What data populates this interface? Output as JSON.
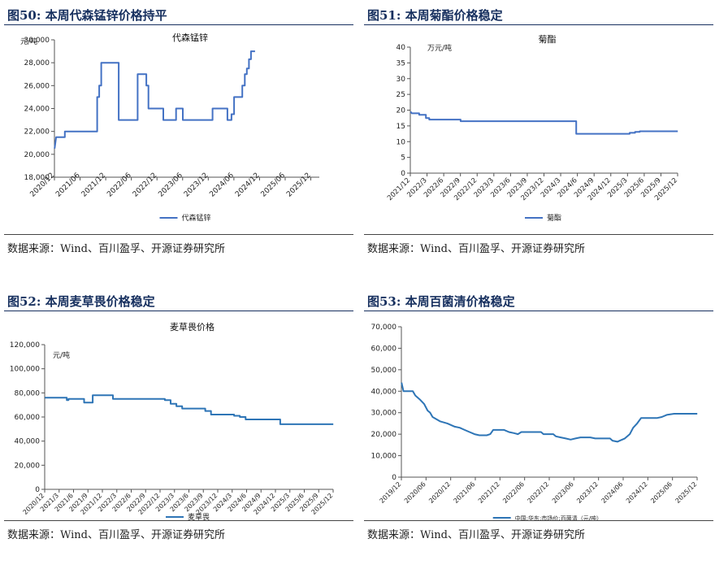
{
  "figures": [
    {
      "fig_title": "图50:  本周代森锰锌价格持平",
      "source": "数据来源：Wind、百川盈孚、开源证券研究所",
      "chart_data": {
        "type": "line",
        "title": "代森锰锌",
        "ylabel": "元/吨",
        "ylim": [
          18000,
          30000
        ],
        "yticks": [
          18000,
          20000,
          22000,
          24000,
          26000,
          28000,
          30000
        ],
        "ytick_labels": [
          "18,000",
          "20,000",
          "22,000",
          "24,000",
          "26,000",
          "28,000",
          "30,000"
        ],
        "xlim": [
          2020.917,
          2026.083
        ],
        "xticks": [
          2020.917,
          2021.417,
          2021.917,
          2022.417,
          2022.917,
          2023.417,
          2023.917,
          2024.417,
          2024.917,
          2025.417,
          2025.917
        ],
        "xtick_labels": [
          "2020/12",
          "2021/06",
          "2021/12",
          "2022/06",
          "2022/12",
          "2023/06",
          "2023/12",
          "2024/06",
          "2024/12",
          "2025/06",
          "2025/12"
        ],
        "legend_position": "bottom",
        "series": [
          {
            "name": "代森锰锌",
            "color": "#4472c4",
            "points": [
              [
                2020.92,
                20500
              ],
              [
                2020.95,
                21500
              ],
              [
                2021.12,
                21500
              ],
              [
                2021.12,
                22000
              ],
              [
                2021.75,
                22000
              ],
              [
                2021.75,
                25000
              ],
              [
                2021.79,
                25000
              ],
              [
                2021.79,
                26000
              ],
              [
                2021.83,
                26000
              ],
              [
                2021.83,
                28000
              ],
              [
                2022.17,
                28000
              ],
              [
                2022.17,
                23000
              ],
              [
                2022.54,
                23000
              ],
              [
                2022.54,
                27000
              ],
              [
                2022.71,
                27000
              ],
              [
                2022.71,
                26000
              ],
              [
                2022.75,
                26000
              ],
              [
                2022.75,
                24000
              ],
              [
                2023.04,
                24000
              ],
              [
                2023.04,
                23000
              ],
              [
                2023.29,
                23000
              ],
              [
                2023.29,
                24000
              ],
              [
                2023.42,
                24000
              ],
              [
                2023.42,
                23000
              ],
              [
                2024.0,
                23000
              ],
              [
                2024.0,
                24000
              ],
              [
                2024.29,
                24000
              ],
              [
                2024.29,
                23000
              ],
              [
                2024.37,
                23000
              ],
              [
                2024.37,
                23500
              ],
              [
                2024.42,
                23500
              ],
              [
                2024.42,
                25000
              ],
              [
                2024.58,
                25000
              ],
              [
                2024.58,
                26000
              ],
              [
                2024.63,
                26000
              ],
              [
                2024.63,
                27000
              ],
              [
                2024.67,
                27000
              ],
              [
                2024.67,
                27500
              ],
              [
                2024.71,
                27500
              ],
              [
                2024.71,
                28300
              ],
              [
                2024.75,
                28300
              ],
              [
                2024.75,
                29000
              ],
              [
                2024.83,
                29000
              ]
            ]
          }
        ]
      }
    },
    {
      "fig_title": "图51:  本周菊酯价格稳定",
      "source": "数据来源：Wind、百川盈孚、开源证券研究所",
      "chart_data": {
        "type": "line",
        "title": "菊酯",
        "ylabel": "万元/吨",
        "ylim": [
          0,
          40
        ],
        "yticks": [
          0,
          5,
          10,
          15,
          20,
          25,
          30,
          35,
          40
        ],
        "ytick_labels": [
          "0",
          "5",
          "10",
          "15",
          "20",
          "25",
          "30",
          "35",
          "40"
        ],
        "xlim": [
          2021.917,
          2025.917
        ],
        "xticks": [
          2021.917,
          2022.167,
          2022.417,
          2022.667,
          2022.917,
          2023.167,
          2023.417,
          2023.667,
          2023.917,
          2024.167,
          2024.417,
          2024.667,
          2024.917,
          2025.167,
          2025.417,
          2025.667,
          2025.917
        ],
        "xtick_labels": [
          "2021/12",
          "2022/3",
          "2022/6",
          "2022/9",
          "2022/12",
          "2023/3",
          "2023/6",
          "2023/9",
          "2023/12",
          "2024/3",
          "2024/6",
          "2024/9",
          "2024/12",
          "2025/3",
          "2025/6",
          "2025/9",
          "2025/12"
        ],
        "legend_position": "bottom",
        "series": [
          {
            "name": "菊酯",
            "color": "#4472c4",
            "points": [
              [
                2021.92,
                19.5
              ],
              [
                2021.94,
                19
              ],
              [
                2022.05,
                19
              ],
              [
                2022.05,
                18.5
              ],
              [
                2022.15,
                18.5
              ],
              [
                2022.15,
                17.5
              ],
              [
                2022.2,
                17.5
              ],
              [
                2022.2,
                17
              ],
              [
                2022.67,
                17
              ],
              [
                2022.67,
                16.5
              ],
              [
                2024.4,
                16.5
              ],
              [
                2024.4,
                12.5
              ],
              [
                2025.2,
                12.5
              ],
              [
                2025.2,
                12.8
              ],
              [
                2025.28,
                12.8
              ],
              [
                2025.28,
                13.1
              ],
              [
                2025.35,
                13.1
              ],
              [
                2025.35,
                13.3
              ],
              [
                2025.92,
                13.3
              ]
            ]
          }
        ]
      }
    },
    {
      "fig_title": "图52:  本周麦草畏价格稳定",
      "source": "数据来源：Wind、百川盈孚、开源证券研究所",
      "chart_data": {
        "type": "line",
        "title": "麦草畏价格",
        "ylabel": "元/吨",
        "ylim": [
          0,
          120000
        ],
        "yticks": [
          0,
          20000,
          40000,
          60000,
          80000,
          100000,
          120000
        ],
        "ytick_labels": [
          "0",
          "20,000",
          "40,000",
          "60,000",
          "80,000",
          "100,000",
          "120,000"
        ],
        "xlim": [
          2020.917,
          2025.917
        ],
        "xticks": [
          2020.917,
          2021.167,
          2021.417,
          2021.667,
          2021.917,
          2022.167,
          2022.417,
          2022.667,
          2022.917,
          2023.167,
          2023.417,
          2023.667,
          2023.917,
          2024.167,
          2024.417,
          2024.667,
          2024.917,
          2025.167,
          2025.417,
          2025.667,
          2025.917
        ],
        "xtick_labels": [
          "2020/12",
          "2021/3",
          "2021/6",
          "2021/9",
          "2021/12",
          "2022/3",
          "2022/6",
          "2022/9",
          "2022/12",
          "2023/3",
          "2023/6",
          "2023/9",
          "2023/12",
          "2024/3",
          "2024/6",
          "2024/9",
          "2024/12",
          "2025/3",
          "2025/6",
          "2025/9",
          "2025/12"
        ],
        "legend_position": "bottom",
        "series": [
          {
            "name": "麦草畏",
            "color": "#2e75b6",
            "points": [
              [
                2020.92,
                76000
              ],
              [
                2021.3,
                76000
              ],
              [
                2021.3,
                74000
              ],
              [
                2021.33,
                74000
              ],
              [
                2021.33,
                75000
              ],
              [
                2021.6,
                75000
              ],
              [
                2021.6,
                72000
              ],
              [
                2021.75,
                72000
              ],
              [
                2021.75,
                78000
              ],
              [
                2022.1,
                78000
              ],
              [
                2022.1,
                75000
              ],
              [
                2023.0,
                75000
              ],
              [
                2023.0,
                74000
              ],
              [
                2023.1,
                74000
              ],
              [
                2023.1,
                71000
              ],
              [
                2023.2,
                71000
              ],
              [
                2023.2,
                69000
              ],
              [
                2023.3,
                69000
              ],
              [
                2023.3,
                67000
              ],
              [
                2023.7,
                67000
              ],
              [
                2023.7,
                65000
              ],
              [
                2023.8,
                65000
              ],
              [
                2023.8,
                62000
              ],
              [
                2024.2,
                62000
              ],
              [
                2024.2,
                61000
              ],
              [
                2024.3,
                61000
              ],
              [
                2024.3,
                60000
              ],
              [
                2024.4,
                60000
              ],
              [
                2024.4,
                58000
              ],
              [
                2025.0,
                58000
              ],
              [
                2025.0,
                54000
              ],
              [
                2025.92,
                54000
              ]
            ]
          }
        ]
      }
    },
    {
      "fig_title": "图53:  本周百菌清价格稳定",
      "source": "数据来源：Wind、百川盈孚、开源证券研究所",
      "chart_data": {
        "type": "line",
        "title": "",
        "ylabel": "",
        "ylim": [
          0,
          70000
        ],
        "yticks": [
          0,
          10000,
          20000,
          30000,
          40000,
          50000,
          60000,
          70000
        ],
        "ytick_labels": [
          "0",
          "10,000",
          "20,000",
          "30,000",
          "40,000",
          "50,000",
          "60,000",
          "70,000"
        ],
        "xlim": [
          2019.917,
          2025.917
        ],
        "xticks": [
          2019.917,
          2020.417,
          2020.917,
          2021.417,
          2021.917,
          2022.417,
          2022.917,
          2023.417,
          2023.917,
          2024.417,
          2024.917,
          2025.417,
          2025.917
        ],
        "xtick_labels": [
          "2019/12",
          "2020/06",
          "2020/12",
          "2021/06",
          "2021/12",
          "2022/06",
          "2022/12",
          "2023/06",
          "2023/12",
          "2024/06",
          "2024/12",
          "2025/06",
          "2025/12"
        ],
        "legend_position": "bottom",
        "series": [
          {
            "name": "中国:华东:市场价:百菌清（元/吨）",
            "color": "#2e75b6",
            "points": [
              [
                2019.92,
                44000
              ],
              [
                2019.96,
                40000
              ],
              [
                2020.15,
                40000
              ],
              [
                2020.2,
                38000
              ],
              [
                2020.3,
                36000
              ],
              [
                2020.38,
                34000
              ],
              [
                2020.45,
                31000
              ],
              [
                2020.5,
                30000
              ],
              [
                2020.55,
                28000
              ],
              [
                2020.7,
                26000
              ],
              [
                2020.85,
                25000
              ],
              [
                2021.0,
                23500
              ],
              [
                2021.1,
                23000
              ],
              [
                2021.2,
                22000
              ],
              [
                2021.3,
                21000
              ],
              [
                2021.4,
                20000
              ],
              [
                2021.5,
                19500
              ],
              [
                2021.65,
                19500
              ],
              [
                2021.72,
                20000
              ],
              [
                2021.78,
                22000
              ],
              [
                2022.0,
                22000
              ],
              [
                2022.1,
                21000
              ],
              [
                2022.2,
                20500
              ],
              [
                2022.28,
                20000
              ],
              [
                2022.35,
                21000
              ],
              [
                2022.75,
                21000
              ],
              [
                2022.8,
                20000
              ],
              [
                2023.0,
                20000
              ],
              [
                2023.05,
                19000
              ],
              [
                2023.15,
                18500
              ],
              [
                2023.25,
                18000
              ],
              [
                2023.35,
                17500
              ],
              [
                2023.45,
                18000
              ],
              [
                2023.55,
                18500
              ],
              [
                2023.75,
                18500
              ],
              [
                2023.85,
                18000
              ],
              [
                2024.15,
                18000
              ],
              [
                2024.2,
                17000
              ],
              [
                2024.3,
                16500
              ],
              [
                2024.35,
                17000
              ],
              [
                2024.45,
                18000
              ],
              [
                2024.55,
                20000
              ],
              [
                2024.62,
                23000
              ],
              [
                2024.7,
                25000
              ],
              [
                2024.78,
                27500
              ],
              [
                2024.9,
                27500
              ],
              [
                2025.1,
                27500
              ],
              [
                2025.2,
                28000
              ],
              [
                2025.3,
                29000
              ],
              [
                2025.45,
                29500
              ],
              [
                2025.92,
                29500
              ]
            ]
          }
        ]
      }
    }
  ]
}
